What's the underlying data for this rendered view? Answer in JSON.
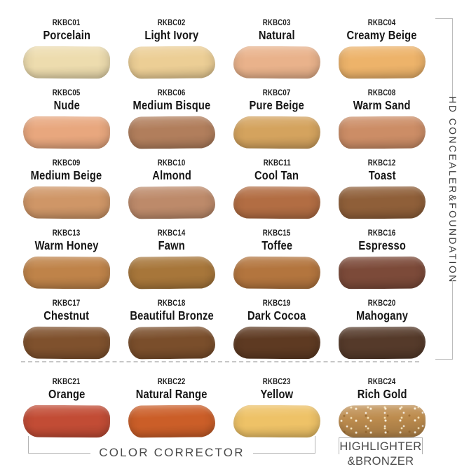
{
  "side_label": "HD CONCEALER&FOUNDATION",
  "bottom_labels": {
    "color_corrector": "COLOR CORRECTOR",
    "highlighter_line1": "HIGHLIGHTER",
    "highlighter_line2": "&BRONZER"
  },
  "colors": {
    "background": "#ffffff",
    "label_text": "#1c1c1c",
    "bracket_line": "#b9b9b9",
    "dashed_divider": "#c7c7c7",
    "group_label_text": "#4b4b4b",
    "side_label_text": "#3c3c3c"
  },
  "swatches": [
    {
      "code": "RKBC01",
      "name": "Porcelain",
      "color": "#eddcae",
      "group": "hd-concealer-foundation",
      "glitter": false
    },
    {
      "code": "RKBC02",
      "name": "Light Ivory",
      "color": "#ecce95",
      "group": "hd-concealer-foundation",
      "glitter": false
    },
    {
      "code": "RKBC03",
      "name": "Natural",
      "color": "#e9b28b",
      "group": "hd-concealer-foundation",
      "glitter": false
    },
    {
      "code": "RKBC04",
      "name": "Creamy Beige",
      "color": "#edb36a",
      "group": "hd-concealer-foundation",
      "glitter": false
    },
    {
      "code": "RKBC05",
      "name": "Nude",
      "color": "#e8a77e",
      "group": "hd-concealer-foundation",
      "glitter": false
    },
    {
      "code": "RKBC06",
      "name": "Medium Bisque",
      "color": "#b17e5c",
      "group": "hd-concealer-foundation",
      "glitter": false
    },
    {
      "code": "RKBC07",
      "name": "Pure Beige",
      "color": "#d4a35e",
      "group": "hd-concealer-foundation",
      "glitter": false
    },
    {
      "code": "RKBC08",
      "name": "Warm Sand",
      "color": "#cc8d66",
      "group": "hd-concealer-foundation",
      "glitter": false
    },
    {
      "code": "RKBC09",
      "name": "Medium Beige",
      "color": "#cf9667",
      "group": "hd-concealer-foundation",
      "glitter": false
    },
    {
      "code": "RKBC10",
      "name": "Almond",
      "color": "#bd8a6a",
      "group": "hd-concealer-foundation",
      "glitter": false
    },
    {
      "code": "RKBC11",
      "name": "Cool Tan",
      "color": "#b26d43",
      "group": "hd-concealer-foundation",
      "glitter": false
    },
    {
      "code": "RKBC12",
      "name": "Toast",
      "color": "#8f5f39",
      "group": "hd-concealer-foundation",
      "glitter": false
    },
    {
      "code": "RKBC13",
      "name": "Warm Honey",
      "color": "#bf8349",
      "group": "hd-concealer-foundation",
      "glitter": false
    },
    {
      "code": "RKBC14",
      "name": "Fawn",
      "color": "#a7763a",
      "group": "hd-concealer-foundation",
      "glitter": false
    },
    {
      "code": "RKBC15",
      "name": "Toffee",
      "color": "#b3753e",
      "group": "hd-concealer-foundation",
      "glitter": false
    },
    {
      "code": "RKBC16",
      "name": "Espresso",
      "color": "#7c4a39",
      "group": "hd-concealer-foundation",
      "glitter": false
    },
    {
      "code": "RKBC17",
      "name": "Chestnut",
      "color": "#7f512d",
      "group": "hd-concealer-foundation",
      "glitter": false
    },
    {
      "code": "RKBC18",
      "name": "Beautiful Bronze",
      "color": "#7a4e2b",
      "group": "hd-concealer-foundation",
      "glitter": false
    },
    {
      "code": "RKBC19",
      "name": "Dark Cocoa",
      "color": "#5e3a22",
      "group": "hd-concealer-foundation",
      "glitter": false
    },
    {
      "code": "RKBC20",
      "name": "Mahogany",
      "color": "#553a2a",
      "group": "hd-concealer-foundation",
      "glitter": false
    },
    {
      "code": "RKBC21",
      "name": "Orange",
      "color": "#c24c35",
      "group": "color-corrector",
      "glitter": false
    },
    {
      "code": "RKBC22",
      "name": "Natural Range",
      "color": "#cb5e28",
      "group": "color-corrector",
      "glitter": false
    },
    {
      "code": "RKBC23",
      "name": "Yellow",
      "color": "#eec267",
      "group": "color-corrector",
      "glitter": false
    },
    {
      "code": "RKBC24",
      "name": "Rich Gold",
      "color": "#bd8c4e",
      "group": "highlighter-bronzer",
      "glitter": true
    }
  ]
}
